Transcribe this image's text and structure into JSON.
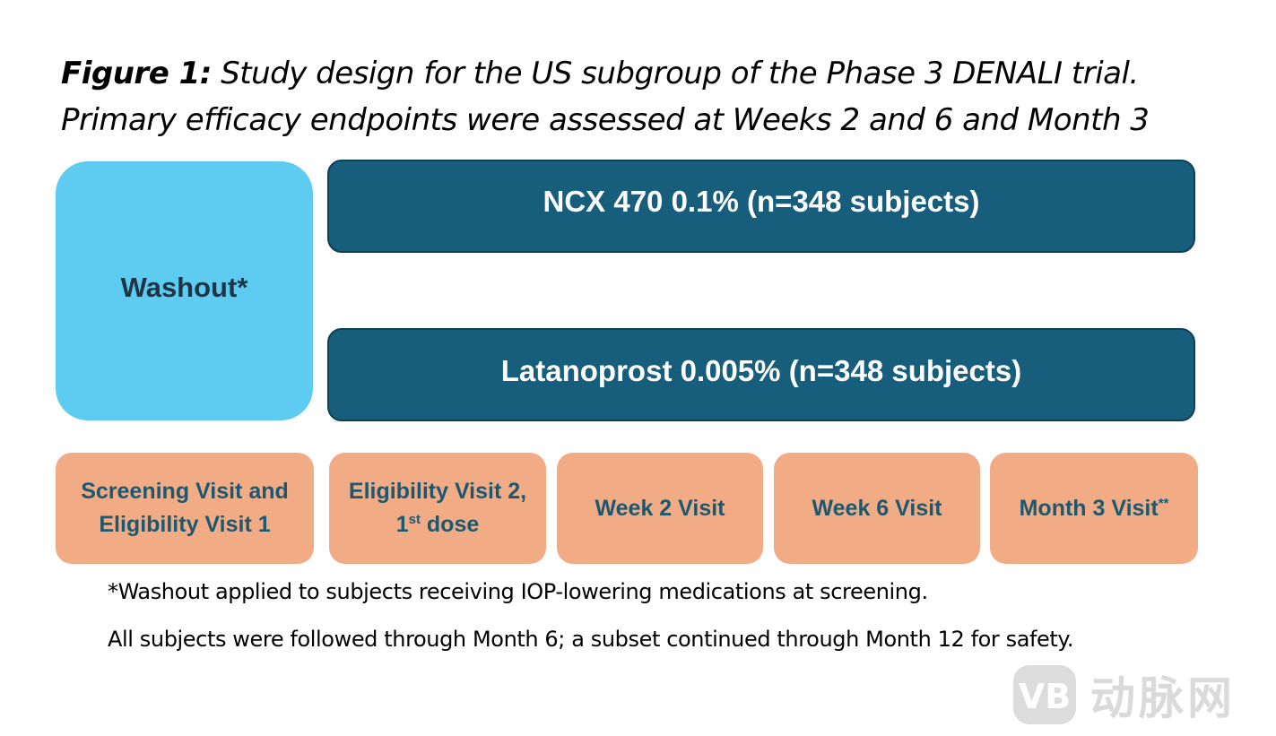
{
  "caption": {
    "label": "Figure 1:",
    "text": " Study design for the US subgroup of the Phase 3 DENALI trial. Primary efficacy endpoints were assessed at Weeks 2 and 6 and Month 3"
  },
  "washout": {
    "label": "Washout*"
  },
  "arms": [
    {
      "label": "NCX 470  0.1% (n=348 subjects)"
    },
    {
      "label": "Latanoprost  0.005% (n=348 subjects)"
    }
  ],
  "visits": [
    {
      "line1": "Screening Visit and",
      "line2": "Eligibility Visit 1"
    },
    {
      "line1": "Eligibility Visit 2,",
      "line2_num": "1",
      "line2_sup": "st",
      "line2_rest": " dose"
    },
    {
      "label": "Week 2 Visit"
    },
    {
      "label": "Week 6 Visit"
    },
    {
      "label": "Month 3 Visit",
      "sup": "**"
    }
  ],
  "footnotes": {
    "washout_note": "*Washout applied to subjects receiving IOP-lowering medications at screening.",
    "followup_note": "All subjects were followed through Month 6; a subset continued through Month 12 for safety."
  },
  "watermark": {
    "text": "动脉网",
    "logo_text": "VB"
  },
  "colors": {
    "washout": "#5ecbf1",
    "arm": "#175d7c",
    "visit": "#f1ab85",
    "visit_text": "#1c5870"
  }
}
